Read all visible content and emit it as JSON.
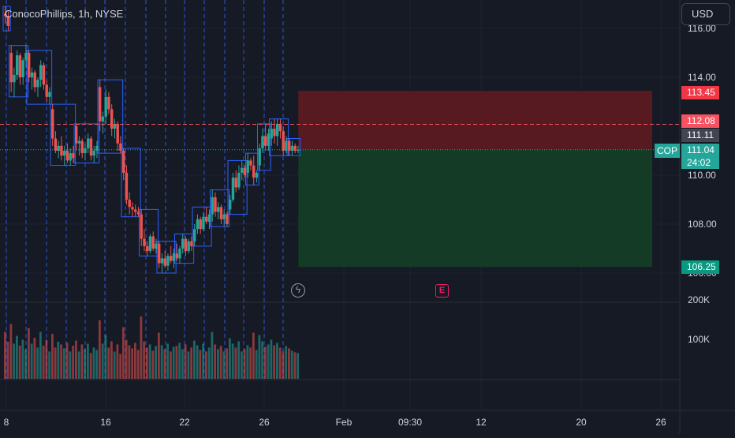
{
  "legend": {
    "symbol": "ConocoPhillips, 1h, NYSE"
  },
  "currency": "USD",
  "symbol_badge": "COP",
  "countdown": "24:02",
  "colors": {
    "bg": "#161a25",
    "grid": "#1f2330",
    "up": "#26a69a",
    "down": "#ef5350",
    "box": "#2962ff",
    "vline": "#2962ff",
    "stop_zone": "#5b1a21",
    "target_zone": "#143d25"
  },
  "chart_data": {
    "type": "candlestick",
    "y_ticks": [
      "116.00",
      "114.00",
      "110.00",
      "108.00",
      "106.00"
    ],
    "y_tick_values": [
      116,
      114,
      110,
      108,
      106
    ],
    "volume_ticks": [
      "200K",
      "100K"
    ],
    "volume_tick_values": [
      200000,
      100000
    ],
    "x_ticks": [
      "8",
      "16",
      "22",
      "26",
      "Feb",
      "09:30",
      "12",
      "20",
      "26"
    ],
    "price_markers": {
      "stop": "113.45",
      "entry": "112.08",
      "last_close": "111.11",
      "current": "111.04",
      "target": "106.25"
    },
    "price_marker_values": {
      "stop": 113.45,
      "entry": 112.08,
      "last_close": 111.11,
      "current": 111.04,
      "target": 106.25
    },
    "candles": [
      [
        116.6,
        116.9,
        116.2,
        116.5
      ],
      [
        116.5,
        116.7,
        115.9,
        116.1
      ],
      [
        115.0,
        115.3,
        113.4,
        113.8
      ],
      [
        113.8,
        114.4,
        113.2,
        114.1
      ],
      [
        114.1,
        115.1,
        113.9,
        114.9
      ],
      [
        114.9,
        115.0,
        113.7,
        114.0
      ],
      [
        114.0,
        114.8,
        113.7,
        114.7
      ],
      [
        114.7,
        115.3,
        114.4,
        115.0
      ],
      [
        115.0,
        115.1,
        113.8,
        114.0
      ],
      [
        114.0,
        114.4,
        113.5,
        114.2
      ],
      [
        114.2,
        114.3,
        113.4,
        113.6
      ],
      [
        113.6,
        114.0,
        113.2,
        113.9
      ],
      [
        113.9,
        114.7,
        113.6,
        114.5
      ],
      [
        114.5,
        114.6,
        113.5,
        113.7
      ],
      [
        113.7,
        113.9,
        113.0,
        113.2
      ],
      [
        113.2,
        113.6,
        112.9,
        113.4
      ],
      [
        112.7,
        112.9,
        111.2,
        111.5
      ],
      [
        111.5,
        111.8,
        110.9,
        111.0
      ],
      [
        111.0,
        111.4,
        110.7,
        111.2
      ],
      [
        111.2,
        111.6,
        110.6,
        110.8
      ],
      [
        110.8,
        111.2,
        110.4,
        111.0
      ],
      [
        111.0,
        111.3,
        110.5,
        110.6
      ],
      [
        110.6,
        111.1,
        110.4,
        110.9
      ],
      [
        110.9,
        111.2,
        110.5,
        110.7
      ],
      [
        112.0,
        112.1,
        111.0,
        111.3
      ],
      [
        111.3,
        111.6,
        110.8,
        111.4
      ],
      [
        111.4,
        111.5,
        110.7,
        110.9
      ],
      [
        110.9,
        111.3,
        110.6,
        111.1
      ],
      [
        111.1,
        111.7,
        110.9,
        111.5
      ],
      [
        111.5,
        111.6,
        110.6,
        110.8
      ],
      [
        110.8,
        111.2,
        110.5,
        111.0
      ],
      [
        111.0,
        111.4,
        110.7,
        111.2
      ],
      [
        113.6,
        113.9,
        111.8,
        112.2
      ],
      [
        112.2,
        112.6,
        111.7,
        112.4
      ],
      [
        112.4,
        113.5,
        112.1,
        113.2
      ],
      [
        113.2,
        113.4,
        112.5,
        112.7
      ],
      [
        112.7,
        112.9,
        111.6,
        111.9
      ],
      [
        111.9,
        112.3,
        111.5,
        112.1
      ],
      [
        112.1,
        112.2,
        111.0,
        111.3
      ],
      [
        111.3,
        111.6,
        110.9,
        111.0
      ],
      [
        111.0,
        111.1,
        109.8,
        110.1
      ],
      [
        110.1,
        110.4,
        108.8,
        109.0
      ],
      [
        109.0,
        109.3,
        108.4,
        108.7
      ],
      [
        108.7,
        108.9,
        108.3,
        108.6
      ],
      [
        108.6,
        108.8,
        108.3,
        108.5
      ],
      [
        108.5,
        108.7,
        108.3,
        108.4
      ],
      [
        108.4,
        108.6,
        107.1,
        107.4
      ],
      [
        107.4,
        107.8,
        106.9,
        107.1
      ],
      [
        107.1,
        107.3,
        106.7,
        106.9
      ],
      [
        106.9,
        107.6,
        106.8,
        107.5
      ],
      [
        107.5,
        107.7,
        106.9,
        107.0
      ],
      [
        107.0,
        107.4,
        106.8,
        107.2
      ],
      [
        107.2,
        107.3,
        106.2,
        106.4
      ],
      [
        106.4,
        106.8,
        106.0,
        106.6
      ],
      [
        106.6,
        106.9,
        106.2,
        106.3
      ],
      [
        106.3,
        106.8,
        106.1,
        106.7
      ],
      [
        106.7,
        107.1,
        106.4,
        106.5
      ],
      [
        106.5,
        107.0,
        106.2,
        106.8
      ],
      [
        106.8,
        107.2,
        106.5,
        106.6
      ],
      [
        106.6,
        107.1,
        106.4,
        107.0
      ],
      [
        107.0,
        107.6,
        106.8,
        107.4
      ],
      [
        107.4,
        107.5,
        106.7,
        106.9
      ],
      [
        106.9,
        107.4,
        106.8,
        107.3
      ],
      [
        107.3,
        107.5,
        106.9,
        107.1
      ],
      [
        107.3,
        108.0,
        107.1,
        107.8
      ],
      [
        107.8,
        108.4,
        107.6,
        108.2
      ],
      [
        108.2,
        108.3,
        107.6,
        107.8
      ],
      [
        107.8,
        108.5,
        107.7,
        108.3
      ],
      [
        108.3,
        108.7,
        108.0,
        108.1
      ],
      [
        108.1,
        108.6,
        107.8,
        108.4
      ],
      [
        108.4,
        109.4,
        108.1,
        109.1
      ],
      [
        109.1,
        109.3,
        108.3,
        108.5
      ],
      [
        108.5,
        108.9,
        108.2,
        108.7
      ],
      [
        108.7,
        108.8,
        108.0,
        108.2
      ],
      [
        108.2,
        108.6,
        107.9,
        108.4
      ],
      [
        108.4,
        108.5,
        107.9,
        108.0
      ],
      [
        108.6,
        109.2,
        108.4,
        109.0
      ],
      [
        109.0,
        110.1,
        108.9,
        109.9
      ],
      [
        109.9,
        110.2,
        109.3,
        109.5
      ],
      [
        109.5,
        110.4,
        109.4,
        110.1
      ],
      [
        110.1,
        110.6,
        109.8,
        110.3
      ],
      [
        110.3,
        110.4,
        109.9,
        110.0
      ],
      [
        110.1,
        110.9,
        109.9,
        110.6
      ],
      [
        110.6,
        110.7,
        110.2,
        110.4
      ],
      [
        110.4,
        110.8,
        109.6,
        109.9
      ],
      [
        109.9,
        110.2,
        109.7,
        110.1
      ],
      [
        110.4,
        111.3,
        110.2,
        111.1
      ],
      [
        111.1,
        111.9,
        110.9,
        111.6
      ],
      [
        111.6,
        112.1,
        111.0,
        111.2
      ],
      [
        111.2,
        111.9,
        111.0,
        111.7
      ],
      [
        111.5,
        112.2,
        111.2,
        111.9
      ],
      [
        111.9,
        112.3,
        111.3,
        111.6
      ],
      [
        111.6,
        112.3,
        111.2,
        112.1
      ],
      [
        112.1,
        112.3,
        111.5,
        111.8
      ],
      [
        111.8,
        112.0,
        110.8,
        111.0
      ],
      [
        111.0,
        111.6,
        110.9,
        111.4
      ],
      [
        111.4,
        111.5,
        110.8,
        111.0
      ],
      [
        111.0,
        111.4,
        110.8,
        111.2
      ],
      [
        111.2,
        111.3,
        110.9,
        111.0
      ],
      [
        111.0,
        111.2,
        110.9,
        111.04
      ]
    ],
    "volumes": [
      120,
      95,
      140,
      90,
      110,
      85,
      100,
      75,
      130,
      90,
      105,
      80,
      120,
      85,
      100,
      70,
      115,
      80,
      95,
      88,
      78,
      92,
      70,
      85,
      98,
      70,
      88,
      76,
      90,
      66,
      80,
      74,
      150,
      90,
      112,
      80,
      96,
      70,
      88,
      64,
      132,
      100,
      86,
      78,
      92,
      74,
      160,
      96,
      80,
      88,
      72,
      84,
      118,
      86,
      76,
      90,
      70,
      82,
      84,
      92,
      76,
      88,
      70,
      80,
      98,
      86,
      74,
      90,
      70,
      80,
      120,
      88,
      76,
      84,
      70,
      78,
      104,
      90,
      80,
      96,
      70,
      76,
      86,
      80,
      118,
      74,
      112,
      96,
      82,
      88,
      100,
      86,
      92,
      80,
      70,
      84,
      78,
      72,
      68,
      66
    ],
    "volume_scale_max": 220000
  }
}
